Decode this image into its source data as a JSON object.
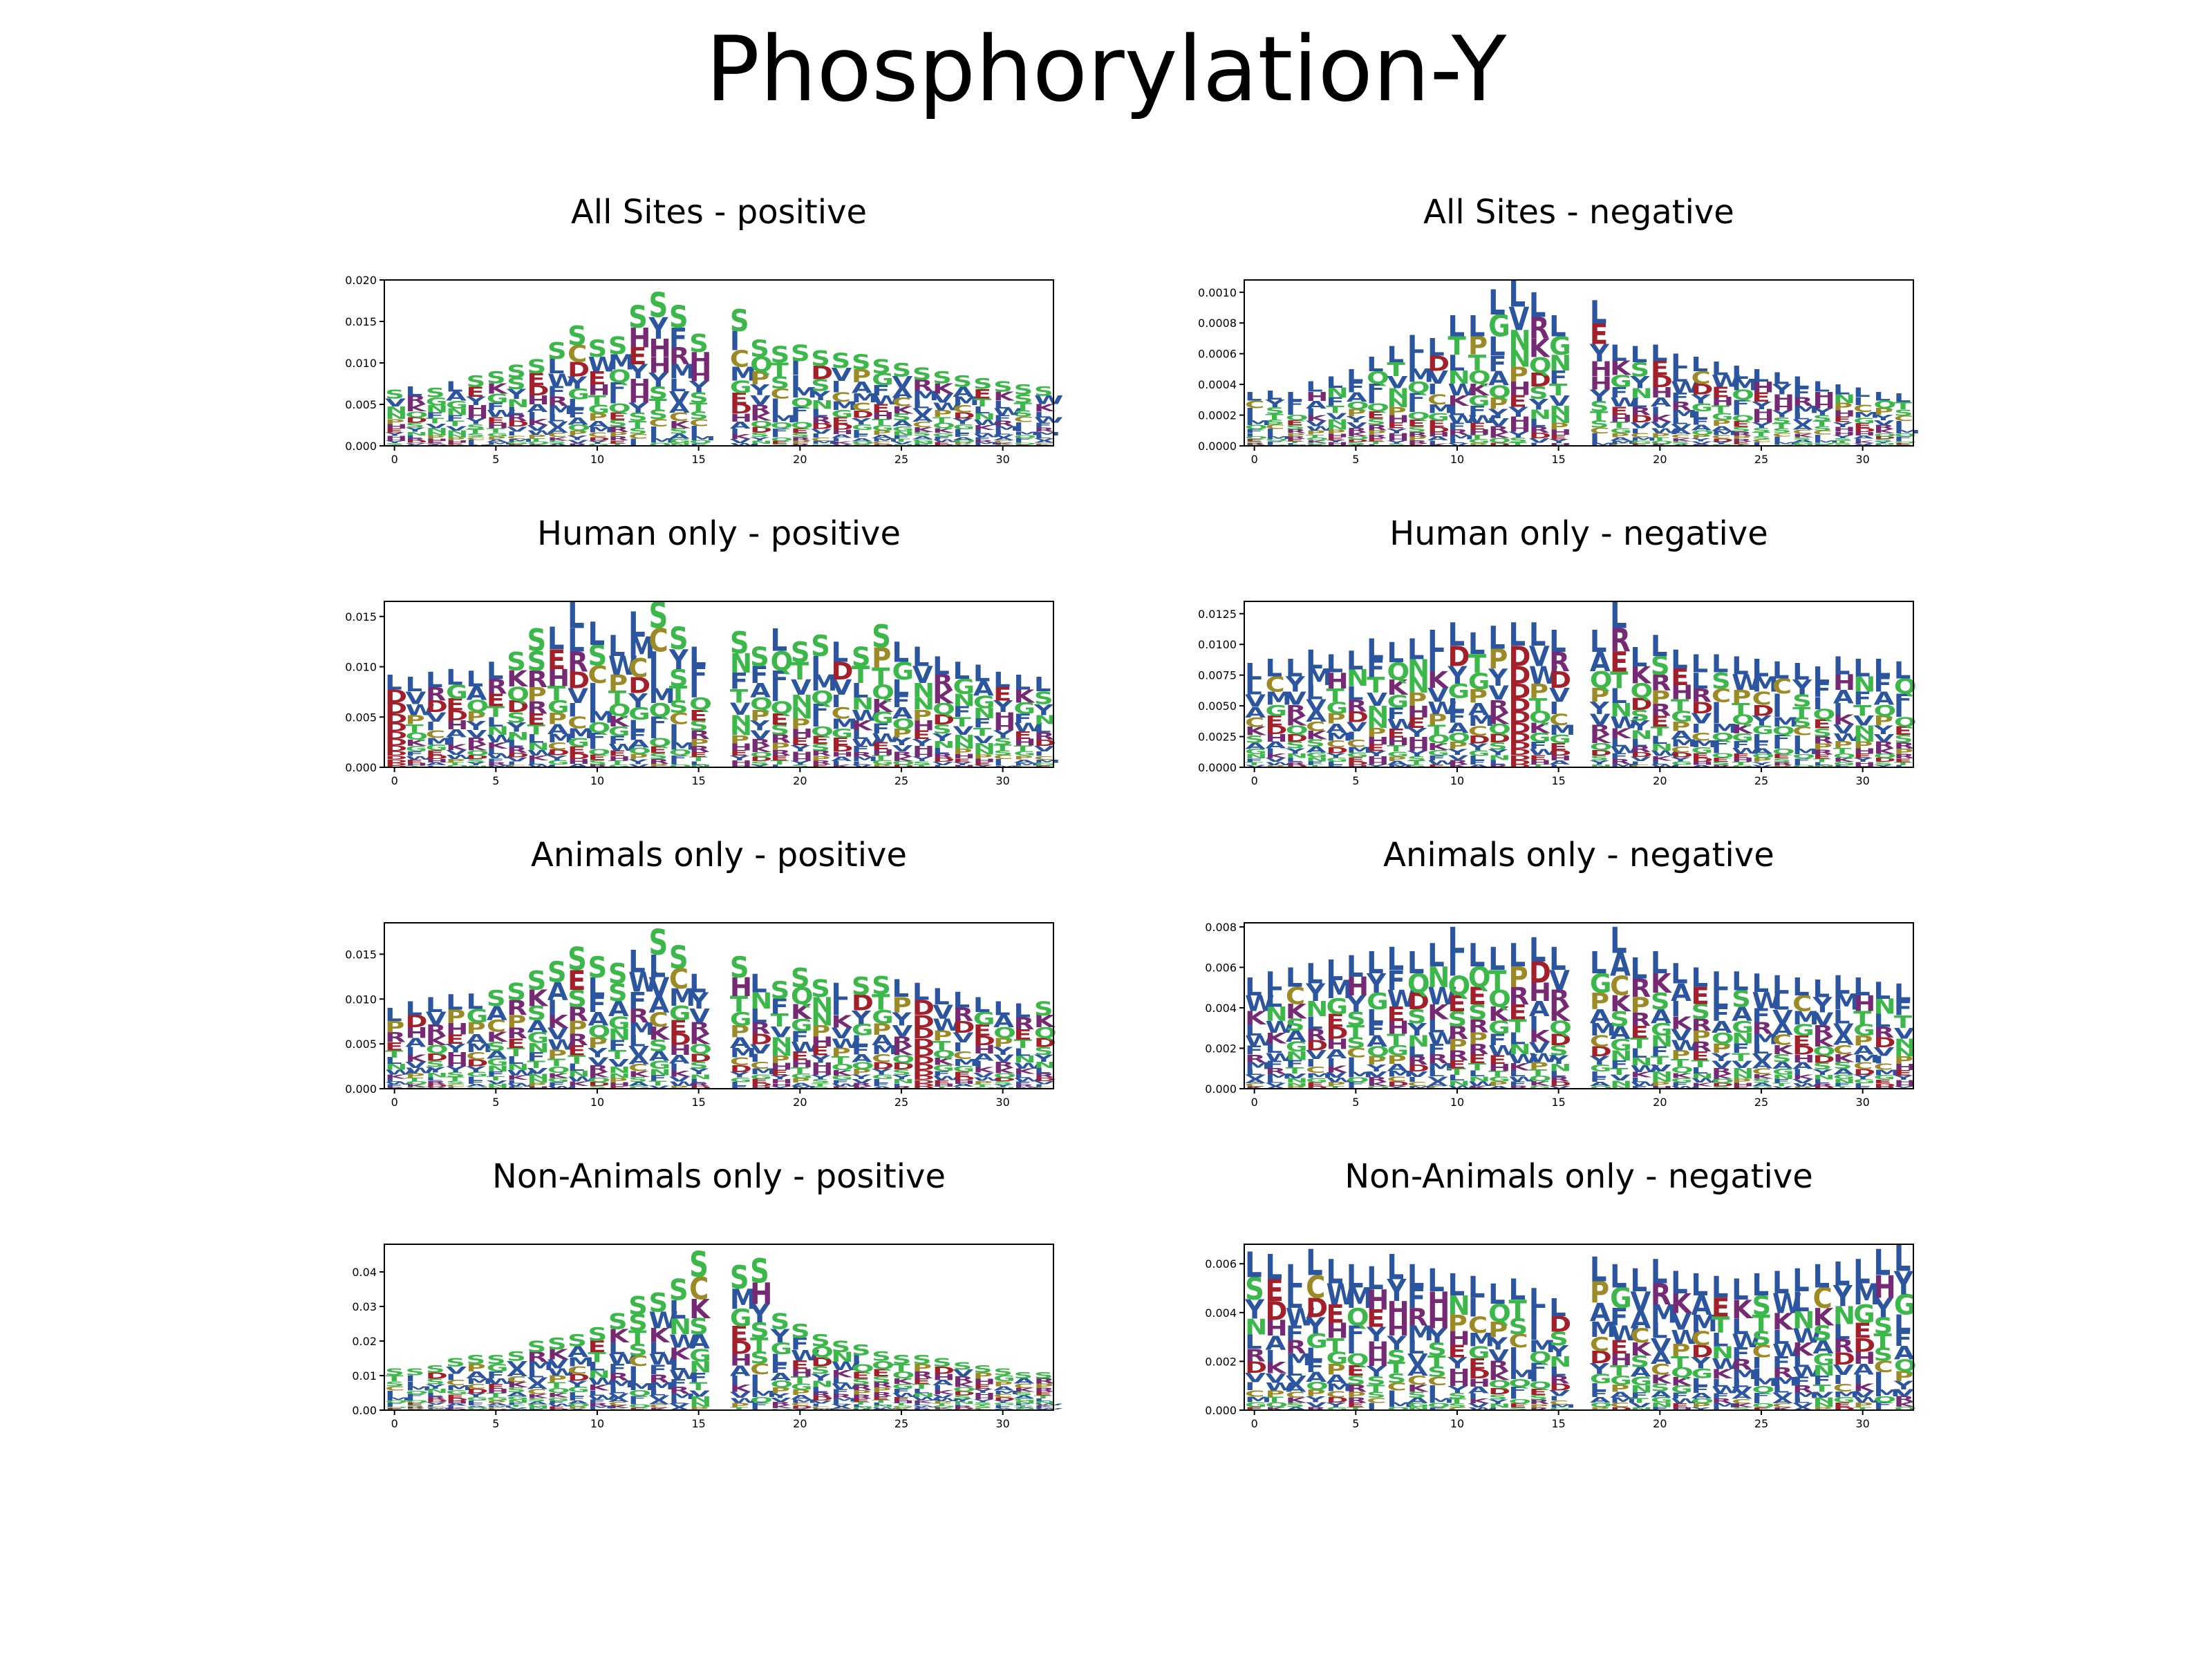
{
  "figure": {
    "title": "Phosphorylation-Y"
  },
  "colors": {
    "hydrophobic": "#2c55a0",
    "polar": "#3cb84a",
    "acidic": "#a31f2a",
    "basic": "#762a73",
    "special": "#9b8a25",
    "other": "#2e8fa0"
  },
  "chart_data": [
    {
      "type": "sequence-logo",
      "title": "All Sites - positive",
      "positions": 33,
      "gap_positions": [
        16
      ],
      "xticks": [
        "0",
        "5",
        "10",
        "15",
        "20",
        "25",
        "30"
      ],
      "yticks": [
        "0.000",
        "0.005",
        "0.010",
        "0.015",
        "0.020"
      ],
      "ylim": [
        0,
        0.02
      ],
      "column_heights": [
        0.0068,
        0.0072,
        0.007,
        0.0078,
        0.0085,
        0.009,
        0.0098,
        0.0105,
        0.0125,
        0.0145,
        0.0128,
        0.0132,
        0.017,
        0.0185,
        0.017,
        0.0135,
        0,
        0.0165,
        0.0128,
        0.012,
        0.0122,
        0.0115,
        0.0112,
        0.011,
        0.0105,
        0.01,
        0.0095,
        0.009,
        0.0085,
        0.0082,
        0.0078,
        0.0074,
        0.0072
      ],
      "top_letters": [
        "S",
        "L",
        "S",
        "L",
        "S",
        "S",
        "S",
        "S",
        "S",
        "S",
        "S",
        "S",
        "S",
        "S",
        "S",
        "S",
        "",
        "S",
        "S",
        "S",
        "S",
        "S",
        "S",
        "S",
        "S",
        "S",
        "S",
        "S",
        "S",
        "S",
        "S",
        "S",
        "S"
      ]
    },
    {
      "type": "sequence-logo",
      "title": "All Sites - negative",
      "positions": 33,
      "gap_positions": [
        16
      ],
      "xticks": [
        "0",
        "5",
        "10",
        "15",
        "20",
        "25",
        "30"
      ],
      "yticks": [
        "0.0000",
        "0.0002",
        "0.0004",
        "0.0006",
        "0.0008",
        "0.0010"
      ],
      "ylim": [
        0,
        0.00108
      ],
      "column_heights": [
        0.00035,
        0.00036,
        0.00035,
        0.00042,
        0.00045,
        0.0005,
        0.00058,
        0.00065,
        0.00072,
        0.0007,
        0.00085,
        0.00085,
        0.00102,
        0.00108,
        0.001,
        0.00085,
        0,
        0.00095,
        0.00066,
        0.00065,
        0.00066,
        0.0006,
        0.00058,
        0.00055,
        0.00052,
        0.0005,
        0.00048,
        0.00045,
        0.00042,
        0.0004,
        0.00038,
        0.00035,
        0.00034
      ],
      "top_letters": [
        "L",
        "L",
        "L",
        "L",
        "L",
        "L",
        "L",
        "L",
        "L",
        "L",
        "L",
        "L",
        "L",
        "L",
        "L",
        "L",
        "",
        "L",
        "L",
        "L",
        "L",
        "L",
        "L",
        "L",
        "L",
        "L",
        "L",
        "L",
        "L",
        "L",
        "L",
        "L",
        "L"
      ]
    },
    {
      "type": "sequence-logo",
      "title": "Human only - positive",
      "positions": 33,
      "gap_positions": [
        16
      ],
      "xticks": [
        "0",
        "5",
        "10",
        "15",
        "20",
        "25",
        "30"
      ],
      "yticks": [
        "0.000",
        "0.005",
        "0.010",
        "0.015"
      ],
      "ylim": [
        0,
        0.0165
      ],
      "column_heights": [
        0.0092,
        0.009,
        0.0095,
        0.0098,
        0.0096,
        0.0105,
        0.0115,
        0.0138,
        0.014,
        0.0165,
        0.0145,
        0.0132,
        0.0155,
        0.0165,
        0.014,
        0.012,
        0,
        0.0135,
        0.012,
        0.0138,
        0.0125,
        0.0132,
        0.0125,
        0.012,
        0.0142,
        0.0125,
        0.012,
        0.011,
        0.0105,
        0.0102,
        0.0095,
        0.0092,
        0.009
      ],
      "top_letters": [
        "L",
        "L",
        "L",
        "L",
        "L",
        "L",
        "S",
        "S",
        "L",
        "L",
        "L",
        "L",
        "L",
        "S",
        "S",
        "L",
        "",
        "S",
        "S",
        "L",
        "S",
        "S",
        "L",
        "S",
        "S",
        "L",
        "L",
        "L",
        "L",
        "L",
        "L",
        "L",
        "L"
      ]
    },
    {
      "type": "sequence-logo",
      "title": "Human only - negative",
      "positions": 33,
      "gap_positions": [
        16
      ],
      "xticks": [
        "0",
        "5",
        "10",
        "15",
        "20",
        "25",
        "30"
      ],
      "yticks": [
        "0.0000",
        "0.0025",
        "0.0050",
        "0.0075",
        "0.0100",
        "0.0125"
      ],
      "ylim": [
        0,
        0.0135
      ],
      "column_heights": [
        0.0085,
        0.0088,
        0.0088,
        0.0096,
        0.0092,
        0.0095,
        0.0105,
        0.0102,
        0.0105,
        0.0112,
        0.0118,
        0.011,
        0.0115,
        0.0118,
        0.0118,
        0.0112,
        0,
        0.0112,
        0.0135,
        0.0098,
        0.0108,
        0.0096,
        0.0092,
        0.0092,
        0.009,
        0.0088,
        0.0086,
        0.0085,
        0.0082,
        0.009,
        0.0088,
        0.0088,
        0.0086
      ],
      "top_letters": [
        "L",
        "L",
        "L",
        "L",
        "L",
        "L",
        "L",
        "L",
        "L",
        "L",
        "L",
        "L",
        "L",
        "L",
        "L",
        "L",
        "",
        "L",
        "L",
        "L",
        "L",
        "L",
        "L",
        "L",
        "L",
        "L",
        "L",
        "L",
        "L",
        "L",
        "L",
        "L",
        "L"
      ]
    },
    {
      "type": "sequence-logo",
      "title": "Animals only - positive",
      "positions": 33,
      "gap_positions": [
        16
      ],
      "xticks": [
        "0",
        "5",
        "10",
        "15",
        "20",
        "25",
        "30"
      ],
      "yticks": [
        "0.000",
        "0.005",
        "0.010",
        "0.015"
      ],
      "ylim": [
        0,
        0.0185
      ],
      "column_heights": [
        0.009,
        0.0098,
        0.0102,
        0.0105,
        0.0106,
        0.011,
        0.0118,
        0.0132,
        0.0142,
        0.0158,
        0.0148,
        0.014,
        0.0155,
        0.0178,
        0.016,
        0.0128,
        0,
        0.0148,
        0.0128,
        0.012,
        0.0135,
        0.0122,
        0.0118,
        0.0125,
        0.0126,
        0.0122,
        0.0118,
        0.0112,
        0.0108,
        0.0102,
        0.0098,
        0.0095,
        0.0098
      ],
      "top_letters": [
        "L",
        "L",
        "L",
        "L",
        "L",
        "S",
        "S",
        "S",
        "S",
        "S",
        "S",
        "S",
        "L",
        "S",
        "S",
        "L",
        "",
        "S",
        "L",
        "S",
        "S",
        "S",
        "L",
        "S",
        "S",
        "L",
        "L",
        "L",
        "L",
        "L",
        "L",
        "L",
        "S"
      ]
    },
    {
      "type": "sequence-logo",
      "title": "Animals only - negative",
      "positions": 33,
      "gap_positions": [
        16
      ],
      "xticks": [
        "0",
        "5",
        "10",
        "15",
        "20",
        "25",
        "30"
      ],
      "yticks": [
        "0.000",
        "0.002",
        "0.004",
        "0.006",
        "0.008"
      ],
      "ylim": [
        0,
        0.0082
      ],
      "column_heights": [
        0.0055,
        0.0058,
        0.006,
        0.0062,
        0.0064,
        0.0066,
        0.0068,
        0.007,
        0.0068,
        0.0072,
        0.008,
        0.0072,
        0.007,
        0.0072,
        0.0075,
        0.007,
        0,
        0.0068,
        0.008,
        0.0065,
        0.0068,
        0.0062,
        0.006,
        0.0058,
        0.0058,
        0.0057,
        0.0056,
        0.0055,
        0.0054,
        0.0056,
        0.0055,
        0.0053,
        0.0052
      ],
      "top_letters": [
        "L",
        "L",
        "L",
        "L",
        "L",
        "L",
        "L",
        "L",
        "L",
        "L",
        "L",
        "L",
        "L",
        "L",
        "L",
        "L",
        "",
        "L",
        "L",
        "L",
        "L",
        "L",
        "L",
        "L",
        "L",
        "L",
        "L",
        "L",
        "L",
        "L",
        "L",
        "L",
        "L"
      ]
    },
    {
      "type": "sequence-logo",
      "title": "Non-Animals only - positive",
      "positions": 33,
      "gap_positions": [
        16
      ],
      "xticks": [
        "0",
        "5",
        "10",
        "15",
        "20",
        "25",
        "30"
      ],
      "yticks": [
        "0.00",
        "0.01",
        "0.02",
        "0.03",
        "0.04"
      ],
      "ylim": [
        0,
        0.048
      ],
      "column_heights": [
        0.012,
        0.012,
        0.013,
        0.015,
        0.016,
        0.016,
        0.017,
        0.02,
        0.021,
        0.022,
        0.024,
        0.028,
        0.033,
        0.034,
        0.038,
        0.046,
        0,
        0.042,
        0.044,
        0.028,
        0.025,
        0.022,
        0.02,
        0.019,
        0.017,
        0.016,
        0.016,
        0.015,
        0.014,
        0.013,
        0.012,
        0.011,
        0.011
      ],
      "top_letters": [
        "S",
        "S",
        "S",
        "S",
        "S",
        "S",
        "S",
        "S",
        "S",
        "S",
        "S",
        "S",
        "S",
        "S",
        "S",
        "S",
        "",
        "S",
        "S",
        "S",
        "S",
        "S",
        "S",
        "S",
        "S",
        "S",
        "S",
        "S",
        "S",
        "S",
        "S",
        "S",
        "S"
      ]
    },
    {
      "type": "sequence-logo",
      "title": "Non-Animals only - negative",
      "positions": 33,
      "gap_positions": [
        16
      ],
      "xticks": [
        "0",
        "5",
        "10",
        "15",
        "20",
        "25",
        "30"
      ],
      "yticks": [
        "0.000",
        "0.002",
        "0.004",
        "0.006"
      ],
      "ylim": [
        0,
        0.0068
      ],
      "column_heights": [
        0.0065,
        0.0064,
        0.006,
        0.0066,
        0.0062,
        0.006,
        0.0059,
        0.0064,
        0.006,
        0.0058,
        0.0056,
        0.0055,
        0.0052,
        0.0054,
        0.005,
        0.0046,
        0,
        0.0063,
        0.006,
        0.0058,
        0.0062,
        0.0057,
        0.0056,
        0.0055,
        0.0054,
        0.0056,
        0.0057,
        0.0058,
        0.006,
        0.0061,
        0.0062,
        0.0066,
        0.0068
      ],
      "top_letters": [
        "L",
        "L",
        "L",
        "L",
        "L",
        "L",
        "L",
        "L",
        "L",
        "L",
        "L",
        "L",
        "L",
        "L",
        "L",
        "L",
        "",
        "L",
        "L",
        "L",
        "L",
        "L",
        "L",
        "L",
        "L",
        "L",
        "L",
        "L",
        "L",
        "L",
        "L",
        "L",
        "L"
      ]
    }
  ]
}
